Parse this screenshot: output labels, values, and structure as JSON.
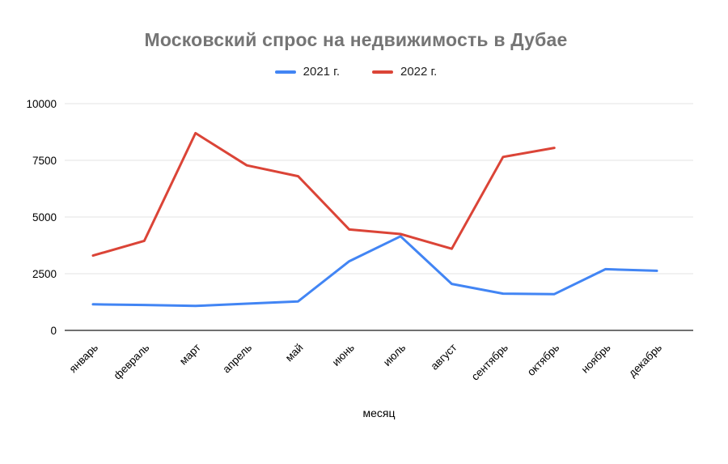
{
  "chart_data": {
    "type": "line",
    "title": "Московский спрос на недвижимость в Дубае",
    "xlabel": "месяц",
    "ylabel": "",
    "ylim": [
      0,
      10000
    ],
    "yticks": [
      0,
      2500,
      5000,
      7500,
      10000
    ],
    "grid": true,
    "legend_position": "top",
    "categories": [
      "январь",
      "февраль",
      "март",
      "апрель",
      "май",
      "июнь",
      "июль",
      "август",
      "сентябрь",
      "октябрь",
      "ноябрь",
      "декабрь"
    ],
    "series": [
      {
        "name": "2021 г.",
        "color": "#4285f4",
        "values": [
          1150,
          1120,
          1080,
          1180,
          1280,
          3050,
          4150,
          2050,
          1620,
          1600,
          2700,
          2630
        ]
      },
      {
        "name": "2022 г.",
        "color": "#db4437",
        "values": [
          3300,
          3950,
          8700,
          7280,
          6800,
          4450,
          4250,
          3600,
          7650,
          8050,
          null,
          null
        ]
      }
    ],
    "colors": {
      "title": "#757575",
      "gridline": "#e3e3e3",
      "axis_line": "#424242",
      "tick_text": "#000000"
    }
  }
}
